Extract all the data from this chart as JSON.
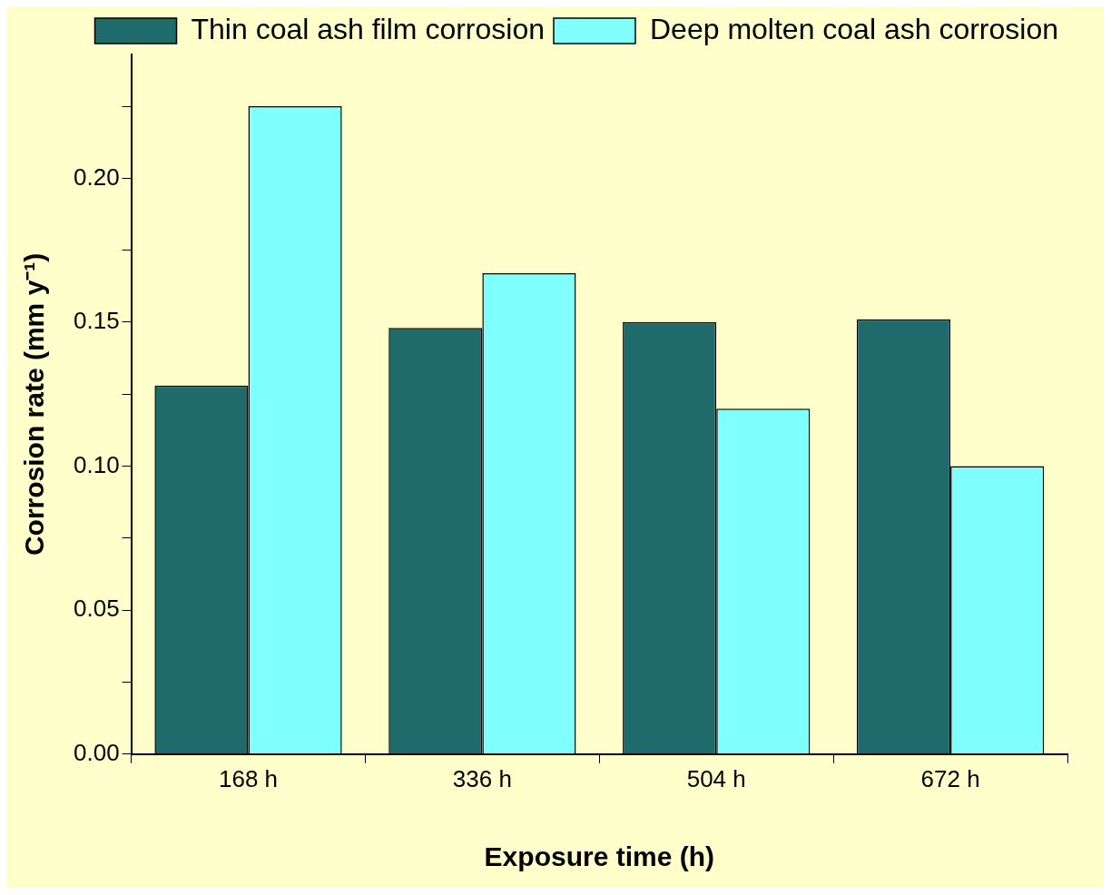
{
  "chart_data": {
    "type": "bar",
    "xlabel": "Exposure time (h)",
    "ylabel": "Corrosion rate (mm y⁻¹)",
    "categories": [
      "168 h",
      "336 h",
      "504 h",
      "672 h"
    ],
    "series": [
      {
        "name": "Thin coal ash film corrosion",
        "color": "#1f6b6b",
        "values": [
          0.128,
          0.148,
          0.15,
          0.151
        ]
      },
      {
        "name": "Deep molten coal ash corrosion",
        "color": "#80ffff",
        "values": [
          0.225,
          0.167,
          0.12,
          0.1
        ]
      }
    ],
    "ylim": [
      0,
      0.243
    ],
    "yticks": [
      {
        "value": 0,
        "label": "0.00"
      },
      {
        "value": 0.025,
        "label": null
      },
      {
        "value": 0.05,
        "label": "0.05"
      },
      {
        "value": 0.075,
        "label": null
      },
      {
        "value": 0.1,
        "label": "0.10"
      },
      {
        "value": 0.125,
        "label": null
      },
      {
        "value": 0.15,
        "label": "0.15"
      },
      {
        "value": 0.175,
        "label": null
      },
      {
        "value": 0.2,
        "label": "0.20"
      },
      {
        "value": 0.225,
        "label": null
      }
    ],
    "grid": false,
    "legend": "top right"
  }
}
